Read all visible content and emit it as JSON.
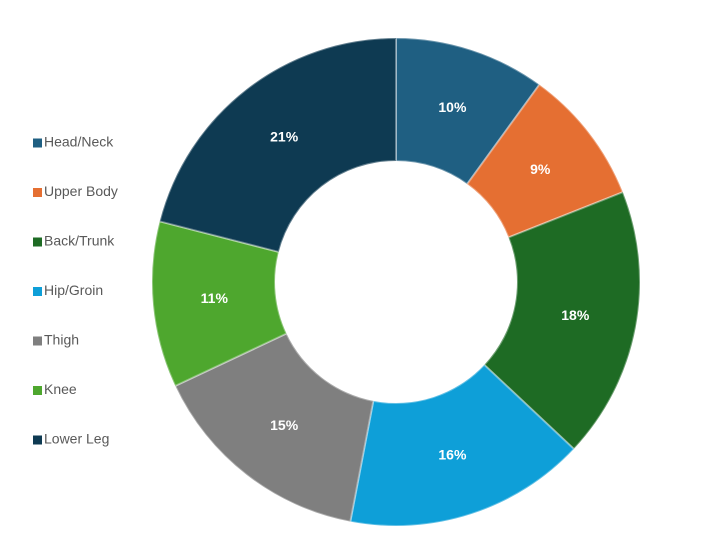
{
  "chart_data": {
    "type": "donut",
    "categories": [
      "Head/Neck",
      "Upper Body",
      "Back/Trunk",
      "Hip/Groin",
      "Thigh",
      "Knee",
      "Lower Leg"
    ],
    "values": [
      10,
      9,
      18,
      16,
      15,
      11,
      21
    ],
    "value_labels": [
      "10%",
      "9%",
      "18%",
      "16%",
      "15%",
      "11%",
      "21%"
    ],
    "colors": [
      "#1f5f82",
      "#e56f32",
      "#1e6b24",
      "#0e9fd8",
      "#7f7f7f",
      "#4ea72e",
      "#0e3a52"
    ],
    "legend": "left"
  }
}
